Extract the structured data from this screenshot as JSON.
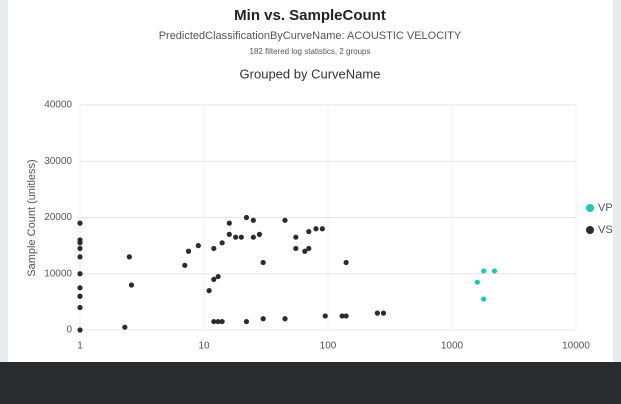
{
  "chart_data": {
    "type": "scatter",
    "title": "Min vs. SampleCount",
    "subtitle": "PredictedClassificationByCurveName: ACOUSTIC VELOCITY",
    "note": "182 filtered log statistics, 2 groups",
    "group_title": "Grouped by CurveName",
    "y_label": "Sample Count (unitless)",
    "xscale": "log",
    "xlim": [
      1,
      10000
    ],
    "xticks": [
      1,
      10,
      100,
      1000,
      10000
    ],
    "ylim": [
      0,
      40000
    ],
    "yticks": [
      0,
      10000,
      20000,
      30000,
      40000
    ],
    "grid": true,
    "legend": "right",
    "series": [
      {
        "name": "VP",
        "color": "#1cc7b8",
        "x": [
          1600,
          1800,
          1800,
          2200
        ],
        "values": [
          8500,
          5500,
          10500,
          10500
        ]
      },
      {
        "name": "VS",
        "color": "#2b2b2b",
        "x": [
          1,
          1,
          1,
          1,
          1,
          1,
          1,
          1,
          1,
          1,
          2.3,
          2.5,
          2.6,
          7,
          7.5,
          9,
          11,
          12,
          12,
          12,
          13,
          13,
          14,
          14,
          16,
          16,
          18,
          20,
          22,
          22,
          25,
          25,
          28,
          30,
          30,
          45,
          45,
          55,
          55,
          65,
          70,
          70,
          80,
          90,
          95,
          130,
          140,
          140,
          250,
          280
        ],
        "values": [
          0,
          4000,
          6000,
          7500,
          10000,
          13000,
          14500,
          15500,
          16000,
          19000,
          500,
          13000,
          8000,
          11500,
          14000,
          15000,
          7000,
          1500,
          14500,
          9000,
          1500,
          9500,
          15500,
          1500,
          19000,
          17000,
          16500,
          16500,
          20000,
          1500,
          19500,
          16500,
          17000,
          12000,
          2000,
          19500,
          2000,
          16500,
          14500,
          14000,
          17500,
          14500,
          18000,
          18000,
          2500,
          2500,
          12000,
          2500,
          3000,
          3000
        ]
      }
    ]
  }
}
